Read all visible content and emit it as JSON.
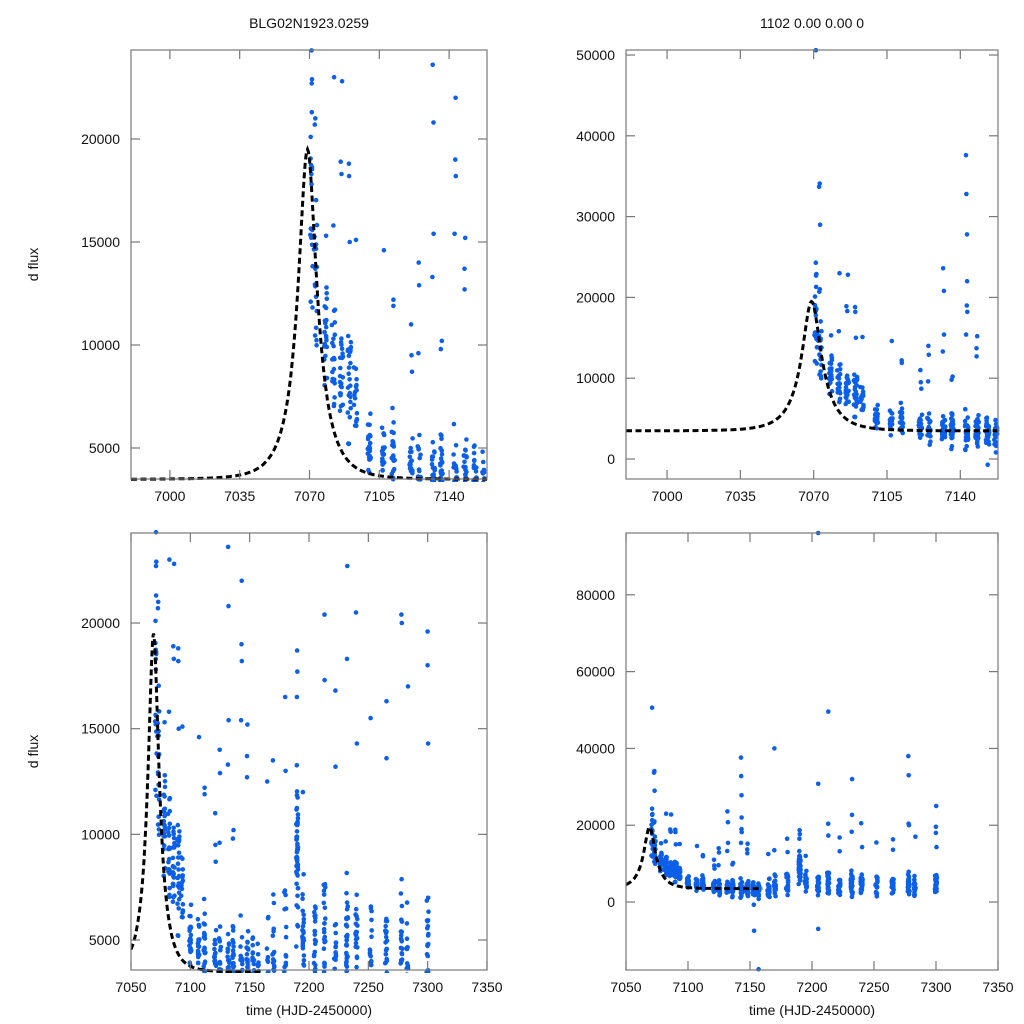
{
  "figure": {
    "title_left": "BLG02N1923.0259",
    "title_right": "1102  0.00  0.00  0",
    "colors": {
      "data_points": "#0b5fe8",
      "model": "#000000",
      "frame": "#777777"
    }
  },
  "chart_data": [
    {
      "id": "top-left",
      "type": "scatter",
      "title": "BLG02N1923.0259",
      "xlabel": "",
      "ylabel": "d flux",
      "xlim": [
        6980.5,
        7159
      ],
      "ylim": [
        3495,
        24320
      ],
      "xticks": [
        7000,
        7035,
        7070,
        7105,
        7140
      ],
      "xtick_labels": [
        "7000",
        "7035",
        "7070",
        "7105",
        "7140"
      ],
      "yticks": [
        5000,
        10000,
        15000,
        20000
      ],
      "ytick_labels": [
        "5000",
        "10000",
        "15000",
        "20000"
      ],
      "grid": false,
      "model": {
        "style": "dashed",
        "t0": 7069,
        "peak": 19500,
        "baseline": 3480,
        "tE": 13
      },
      "series_ref": "observations"
    },
    {
      "id": "top-right",
      "type": "scatter",
      "title": "1102  0.00  0.00  0",
      "xlabel": "",
      "ylabel": "",
      "xlim": [
        6980.4,
        7158
      ],
      "ylim": [
        -2475,
        50620
      ],
      "xticks": [
        7000,
        7035,
        7070,
        7105,
        7140
      ],
      "xtick_labels": [
        "7000",
        "7035",
        "7070",
        "7105",
        "7140"
      ],
      "yticks": [
        0,
        10000,
        20000,
        30000,
        40000,
        50000
      ],
      "ytick_labels": [
        "0",
        "10000",
        "20000",
        "30000",
        "40000",
        "50000"
      ],
      "grid": false,
      "model": {
        "style": "dashed",
        "t0": 7069,
        "peak": 19500,
        "baseline": 3480,
        "tE": 13
      },
      "series_ref": "observations"
    },
    {
      "id": "bottom-left",
      "type": "scatter",
      "title": "",
      "xlabel": "time (HJD-2450000)",
      "ylabel": "d flux",
      "xlim": [
        7050,
        7350
      ],
      "ylim": [
        3580,
        24260
      ],
      "xticks": [
        7050,
        7100,
        7150,
        7200,
        7250,
        7300,
        7350
      ],
      "xtick_labels": [
        "7050",
        "7100",
        "7150",
        "7200",
        "7250",
        "7300",
        "7350"
      ],
      "yticks": [
        5000,
        10000,
        15000,
        20000
      ],
      "ytick_labels": [
        "5000",
        "10000",
        "15000",
        "20000"
      ],
      "grid": false,
      "model": {
        "style": "dashed",
        "t0": 7069,
        "peak": 19500,
        "baseline": 3480,
        "tE": 13,
        "x_end": 7160
      },
      "series_ref": "observations"
    },
    {
      "id": "bottom-right",
      "type": "scatter",
      "title": "",
      "xlabel": "time (HJD-2450000)",
      "ylabel": "",
      "xlim": [
        7050,
        7350
      ],
      "ylim": [
        -17700,
        96100
      ],
      "xticks": [
        7050,
        7100,
        7150,
        7200,
        7250,
        7300,
        7350
      ],
      "xtick_labels": [
        "7050",
        "7100",
        "7150",
        "7200",
        "7250",
        "7300",
        "7350"
      ],
      "yticks": [
        0,
        20000,
        40000,
        60000,
        80000
      ],
      "ytick_labels": [
        "0",
        "20000",
        "40000",
        "60000",
        "80000"
      ],
      "grid": false,
      "model": {
        "style": "dashed",
        "t0": 7069,
        "peak": 19500,
        "baseline": 3480,
        "tE": 13,
        "x_end": 7160
      },
      "series_ref": "observations"
    }
  ],
  "observations": {
    "name": "d flux (HJD-2450000)",
    "nights": [
      {
        "t": 7071,
        "center": 16000,
        "spread": 4500,
        "n": 14,
        "outliers": [
          24300,
          22900,
          22700,
          21300,
          20100,
          50600
        ]
      },
      {
        "t": 7073,
        "center": 13000,
        "spread": 3500,
        "n": 16,
        "outliers": [
          34100,
          33700,
          29000,
          21000,
          20700
        ]
      },
      {
        "t": 7078,
        "center": 10500,
        "spread": 2200,
        "n": 22,
        "outliers": [
          15300
        ]
      },
      {
        "t": 7082,
        "center": 9500,
        "spread": 2000,
        "n": 20,
        "outliers": [
          15800,
          23000
        ]
      },
      {
        "t": 7086,
        "center": 8600,
        "spread": 2200,
        "n": 22,
        "outliers": [
          18300,
          18900,
          22800
        ]
      },
      {
        "t": 7090,
        "center": 8000,
        "spread": 2600,
        "n": 24,
        "outliers": [
          15000,
          18800,
          18200
        ]
      },
      {
        "t": 7093,
        "center": 7200,
        "spread": 2000,
        "n": 16,
        "outliers": [
          15100
        ]
      },
      {
        "t": 7100,
        "center": 5400,
        "spread": 1300,
        "n": 22,
        "outliers": []
      },
      {
        "t": 7107,
        "center": 4800,
        "spread": 1300,
        "n": 18,
        "outliers": [
          14600
        ]
      },
      {
        "t": 7112,
        "center": 4500,
        "spread": 1500,
        "n": 22,
        "outliers": [
          12200,
          11900
        ]
      },
      {
        "t": 7121,
        "center": 4000,
        "spread": 1400,
        "n": 20,
        "outliers": [
          11000,
          9500,
          8700
        ]
      },
      {
        "t": 7125,
        "center": 3900,
        "spread": 1800,
        "n": 22,
        "outliers": [
          14000,
          12900,
          9600
        ]
      },
      {
        "t": 7132,
        "center": 3800,
        "spread": 1600,
        "n": 30,
        "outliers": [
          20800,
          23600,
          15400,
          13300
        ]
      },
      {
        "t": 7136,
        "center": 3700,
        "spread": 1700,
        "n": 30,
        "outliers": [
          10200,
          9800
        ]
      },
      {
        "t": 7143,
        "center": 3600,
        "spread": 1800,
        "n": 30,
        "outliers": [
          37600,
          32800,
          27800,
          22000,
          19000,
          18200,
          15400
        ]
      },
      {
        "t": 7148,
        "center": 3500,
        "spread": 1900,
        "n": 30,
        "outliers": [
          15200,
          13700,
          12700
        ]
      },
      {
        "t": 7153,
        "center": 3200,
        "spread": 2000,
        "n": 26,
        "outliers": [
          -700,
          -7500
        ]
      },
      {
        "t": 7157,
        "center": 3000,
        "spread": 1800,
        "n": 20,
        "outliers": [
          -17500
        ]
      },
      {
        "t": 7165,
        "center": 3500,
        "spread": 2200,
        "n": 18,
        "outliers": [
          12500
        ]
      },
      {
        "t": 7170,
        "center": 4200,
        "spread": 2400,
        "n": 20,
        "outliers": [
          40000,
          13500
        ]
      },
      {
        "t": 7180,
        "center": 4800,
        "spread": 2500,
        "n": 18,
        "outliers": [
          16500,
          13000
        ]
      },
      {
        "t": 7190,
        "center": 8500,
        "spread": 3500,
        "n": 50,
        "outliers": [
          18700,
          17700,
          16500
        ]
      },
      {
        "t": 7195,
        "center": 5000,
        "spread": 2500,
        "n": 24,
        "outliers": [
          12000
        ]
      },
      {
        "t": 7205,
        "center": 4500,
        "spread": 2500,
        "n": 28,
        "outliers": [
          96100,
          30800,
          -7000
        ]
      },
      {
        "t": 7213,
        "center": 5000,
        "spread": 3000,
        "n": 28,
        "outliers": [
          49600,
          20400,
          17300
        ]
      },
      {
        "t": 7222,
        "center": 4300,
        "spread": 2500,
        "n": 22,
        "outliers": [
          16800,
          13200
        ]
      },
      {
        "t": 7232,
        "center": 4800,
        "spread": 2800,
        "n": 34,
        "outliers": [
          32000,
          22700,
          18300
        ]
      },
      {
        "t": 7240,
        "center": 4500,
        "spread": 2600,
        "n": 30,
        "outliers": [
          20500,
          14300
        ]
      },
      {
        "t": 7252,
        "center": 4200,
        "spread": 2200,
        "n": 20,
        "outliers": [
          15500
        ]
      },
      {
        "t": 7265,
        "center": 4300,
        "spread": 2400,
        "n": 22,
        "outliers": [
          16300,
          13600
        ]
      },
      {
        "t": 7278,
        "center": 4800,
        "spread": 2800,
        "n": 26,
        "outliers": [
          38000,
          33000,
          20400,
          20000
        ]
      },
      {
        "t": 7283,
        "center": 4000,
        "spread": 2200,
        "n": 20,
        "outliers": [
          17000
        ]
      },
      {
        "t": 7300,
        "center": 4500,
        "spread": 2000,
        "n": 24,
        "outliers": [
          25000,
          19600,
          18000,
          14300
        ]
      }
    ]
  }
}
